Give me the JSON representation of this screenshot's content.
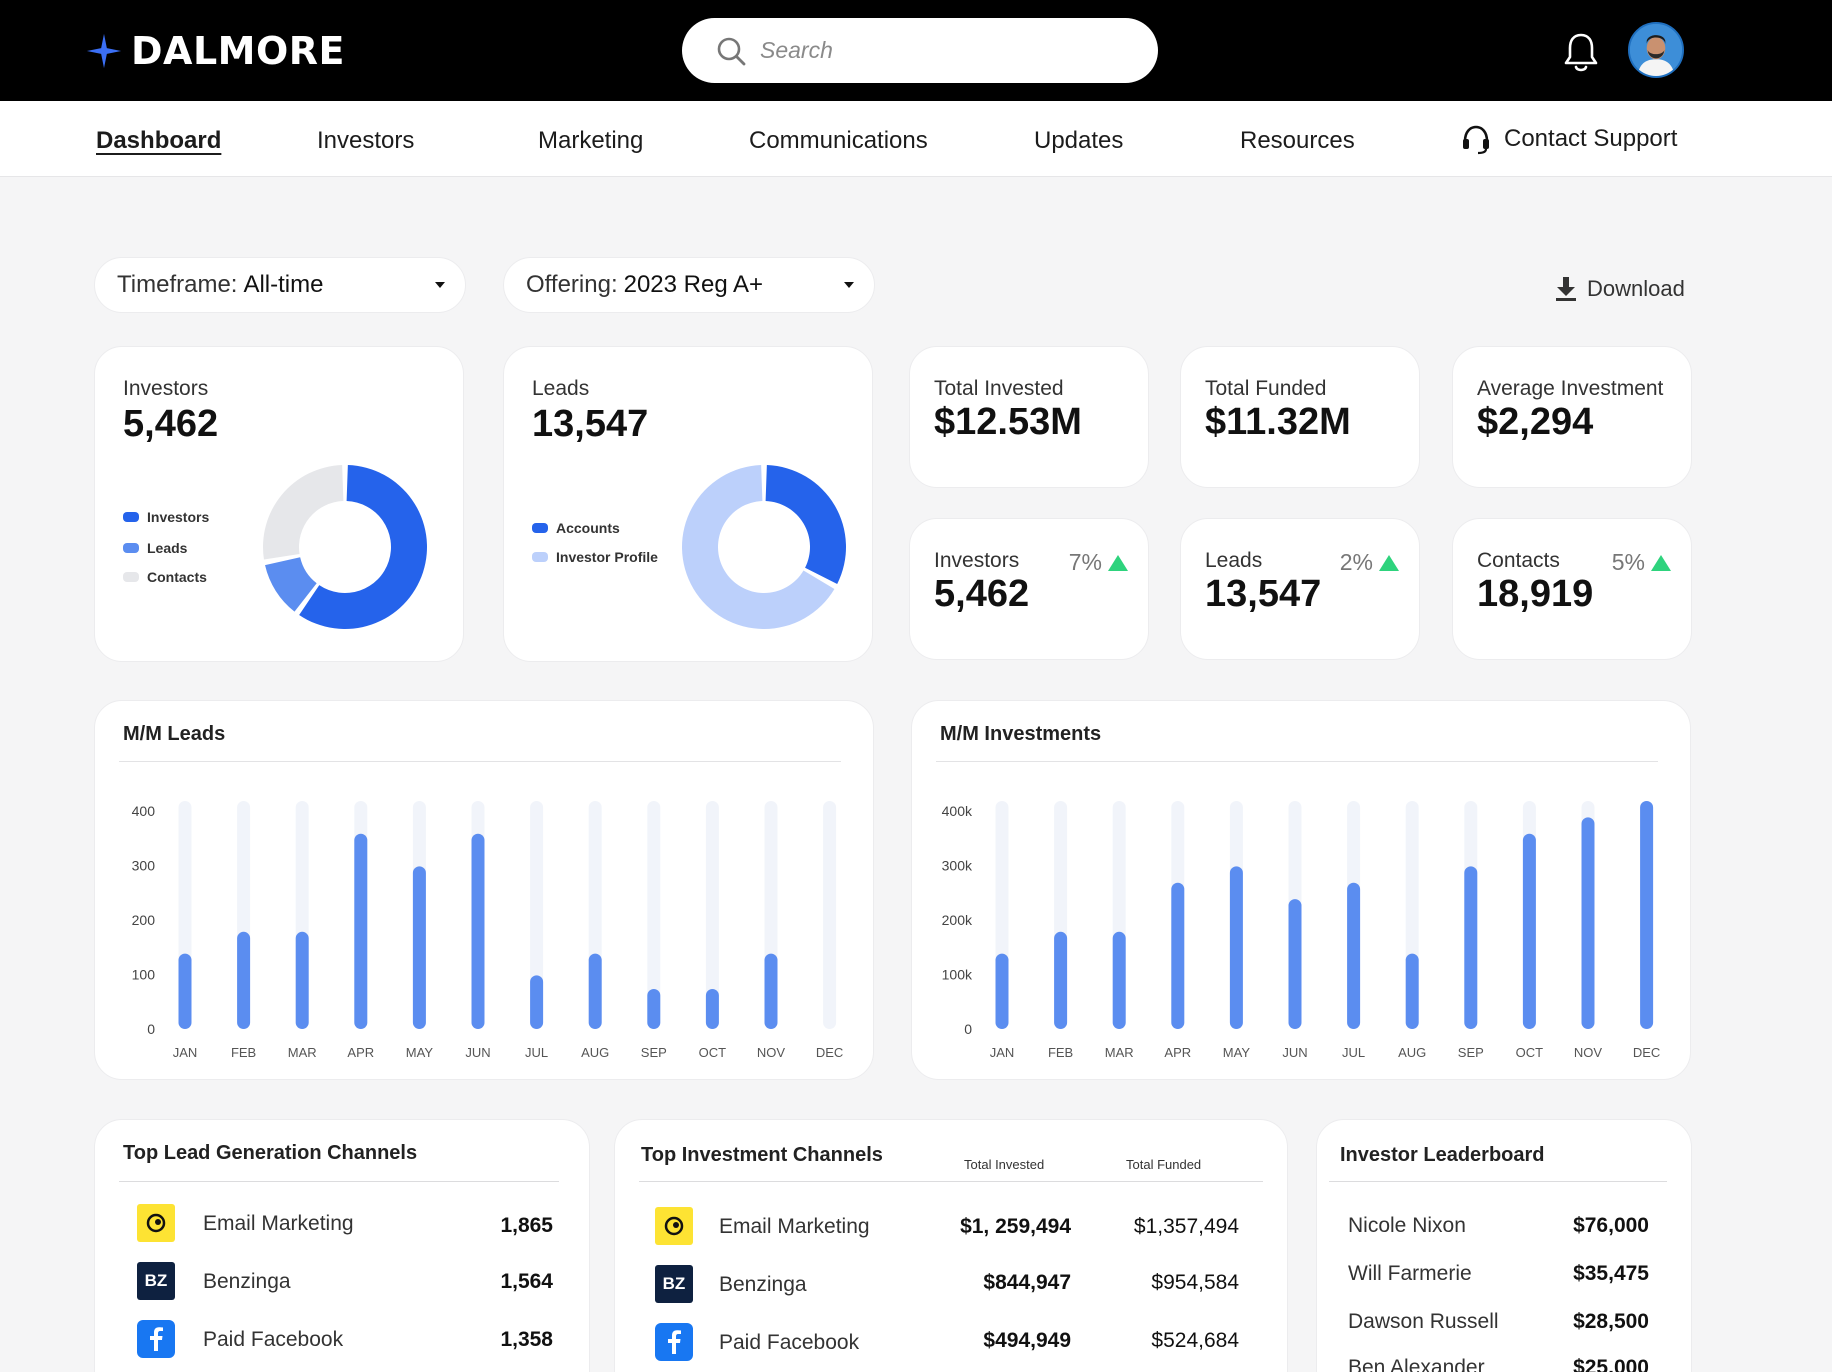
{
  "brand": {
    "name": "DALMORE"
  },
  "search": {
    "placeholder": "Search"
  },
  "nav": {
    "items": [
      {
        "label": "Dashboard",
        "active": true
      },
      {
        "label": "Investors"
      },
      {
        "label": "Marketing"
      },
      {
        "label": "Communications"
      },
      {
        "label": "Updates"
      },
      {
        "label": "Resources"
      }
    ],
    "support_label": "Contact Support"
  },
  "filters": {
    "timeframe": {
      "label": "Timeframe:",
      "value": "All-time"
    },
    "offering": {
      "label": "Offering:",
      "value": "2023 Reg A+"
    }
  },
  "download_label": "Download",
  "summary": {
    "investors": {
      "label": "Investors",
      "value": "5,462",
      "legend": [
        "Investors",
        "Leads",
        "Contacts"
      ]
    },
    "leads": {
      "label": "Leads",
      "value": "13,547",
      "legend": [
        "Accounts",
        "Investor Profile"
      ]
    }
  },
  "totals": [
    {
      "label": "Total Invested",
      "value": "$12.53M"
    },
    {
      "label": "Total Funded",
      "value": "$11.32M"
    },
    {
      "label": "Average Investment",
      "value": "$2,294"
    }
  ],
  "growth": [
    {
      "label": "Investors",
      "value": "5,462",
      "pct": "7%"
    },
    {
      "label": "Leads",
      "value": "13,547",
      "pct": "2%"
    },
    {
      "label": "Contacts",
      "value": "18,919",
      "pct": "5%"
    }
  ],
  "colors": {
    "primary": "#2563eb",
    "mid": "#5b8df0",
    "light": "#bcd0fb",
    "track": "#f1f4fa",
    "grey": "#e6e7ea",
    "up": "#2ed37d"
  },
  "chart_data": [
    {
      "type": "pie",
      "labels": [
        "Investors",
        "Leads",
        "Contacts"
      ],
      "values": [
        60,
        12,
        28
      ]
    },
    {
      "type": "pie",
      "labels": [
        "Accounts",
        "Investor Profile"
      ],
      "values": [
        33,
        67
      ]
    },
    {
      "type": "bar",
      "title": "M/M Leads",
      "categories": [
        "JAN",
        "FEB",
        "MAR",
        "APR",
        "MAY",
        "JUN",
        "JUL",
        "AUG",
        "SEP",
        "OCT",
        "NOV",
        "DEC"
      ],
      "values": [
        120,
        160,
        160,
        340,
        280,
        340,
        80,
        120,
        55,
        55,
        120,
        0
      ],
      "y_ticks": [
        "0",
        "100",
        "200",
        "300",
        "400"
      ],
      "ylim": [
        0,
        400
      ]
    },
    {
      "type": "bar",
      "title": "M/M Investments",
      "categories": [
        "JAN",
        "FEB",
        "MAR",
        "APR",
        "MAY",
        "JUN",
        "JUL",
        "AUG",
        "SEP",
        "OCT",
        "NOV",
        "DEC"
      ],
      "values": [
        120000,
        160000,
        160000,
        250000,
        280000,
        220000,
        250000,
        120000,
        280000,
        340000,
        370000,
        400000
      ],
      "y_ticks": [
        "0",
        "100k",
        "200k",
        "300k",
        "400k"
      ],
      "ylim": [
        0,
        400000
      ]
    }
  ],
  "lead_channels": {
    "title": "Top Lead Generation Channels",
    "rows": [
      {
        "name": "Email Marketing",
        "value": "1,865",
        "icon": "mailchimp-icon"
      },
      {
        "name": "Benzinga",
        "value": "1,564",
        "icon": "BZ"
      },
      {
        "name": "Paid Facebook",
        "value": "1,358",
        "icon": "facebook-icon"
      }
    ]
  },
  "investment_channels": {
    "title": "Top Investment Channels",
    "col_invested": "Total Invested",
    "col_funded": "Total Funded",
    "rows": [
      {
        "name": "Email Marketing",
        "invested": "$1, 259,494",
        "funded": "$1,357,494",
        "icon": "mailchimp-icon"
      },
      {
        "name": "Benzinga",
        "invested": "$844,947",
        "funded": "$954,584",
        "icon": "BZ"
      },
      {
        "name": "Paid Facebook",
        "invested": "$494,949",
        "funded": "$524,684",
        "icon": "facebook-icon"
      }
    ]
  },
  "leaderboard": {
    "title": "Investor Leaderboard",
    "rows": [
      {
        "name": "Nicole Nixon",
        "value": "$76,000"
      },
      {
        "name": "Will Farmerie",
        "value": "$35,475"
      },
      {
        "name": "Dawson Russell",
        "value": "$28,500"
      },
      {
        "name": "Ben Alexander",
        "value": "$25,000"
      }
    ]
  }
}
